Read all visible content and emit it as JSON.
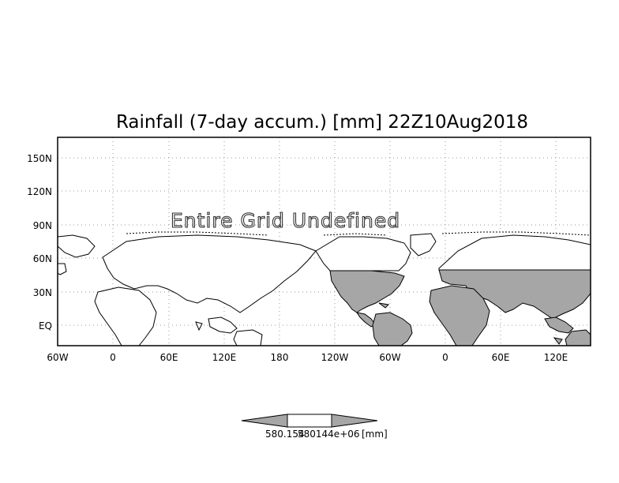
{
  "map": {
    "title": "Rainfall (7-day accum.) [mm] 22Z10Aug2018",
    "overlay_text": "Entire Grid Undefined",
    "lat_labels": [
      "150N",
      "120N",
      "90N",
      "60N",
      "30N",
      "EQ"
    ],
    "lon_labels": [
      "60W",
      "0",
      "60E",
      "120E",
      "180",
      "120W",
      "60W",
      "0",
      "60E",
      "120E"
    ],
    "shade_color": "#a6a6a6",
    "land_color": "#ffffff",
    "grid": true
  },
  "colorbar": {
    "label_left": "580.154",
    "label_mid": "580144e+06",
    "label_units": "[mm]"
  }
}
